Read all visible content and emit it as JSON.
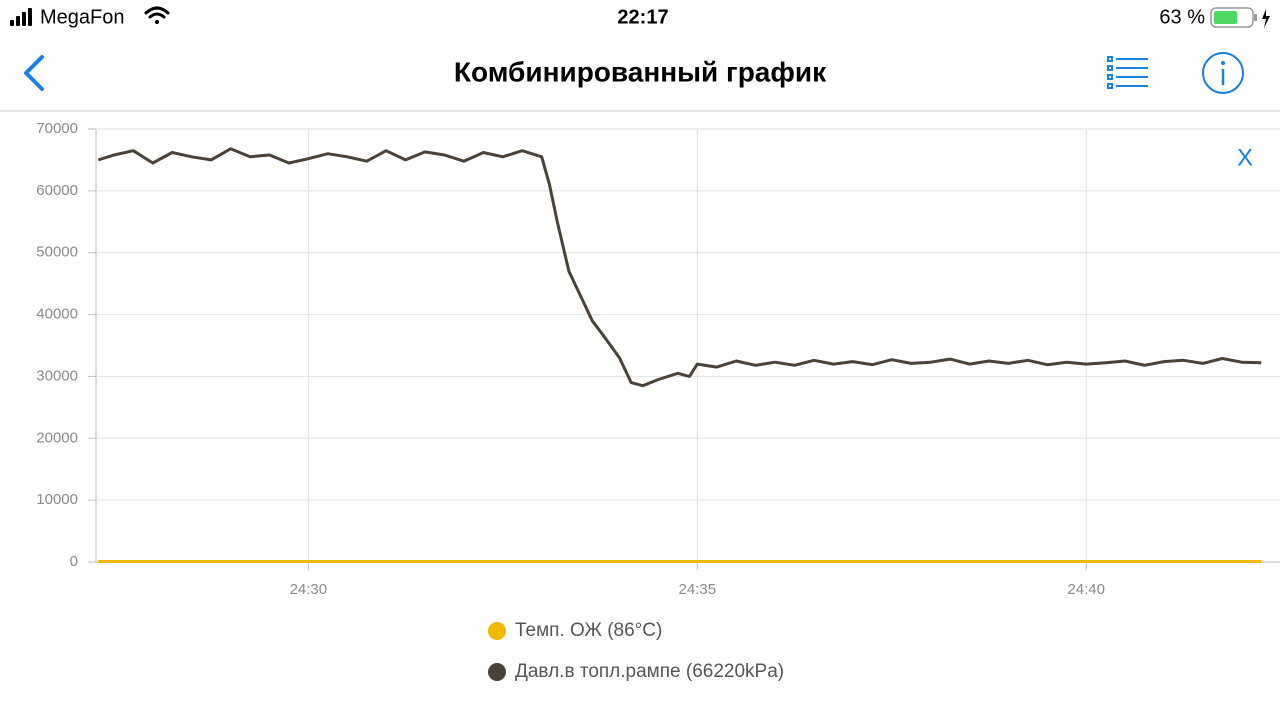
{
  "status_bar": {
    "carrier": "MegaFon",
    "time": "22:17",
    "battery": "63 %"
  },
  "nav": {
    "title": "Комбинированный график"
  },
  "close_button": "X",
  "chart_data": {
    "type": "line",
    "x": [
      27.3,
      27.5,
      27.75,
      28,
      28.25,
      28.5,
      28.75,
      29,
      29.25,
      29.5,
      29.75,
      30,
      30.25,
      30.5,
      30.75,
      31,
      31.25,
      31.5,
      31.75,
      32,
      32.25,
      32.5,
      32.75,
      33,
      33.1,
      33.2,
      33.35,
      33.5,
      33.65,
      33.8,
      34,
      34.15,
      34.3,
      34.5,
      34.75,
      34.9,
      35,
      35.25,
      35.5,
      35.75,
      36,
      36.25,
      36.5,
      36.75,
      37,
      37.25,
      37.5,
      37.75,
      38,
      38.25,
      38.5,
      38.75,
      39,
      39.25,
      39.5,
      39.75,
      40,
      40.25,
      40.5,
      40.75,
      41,
      41.25,
      41.5,
      41.75,
      42,
      42.25
    ],
    "xlim": [
      27.27,
      42.26
    ],
    "xticks": [
      {
        "value": 30,
        "label": "24:30"
      },
      {
        "value": 35,
        "label": "24:35"
      },
      {
        "value": 40,
        "label": "24:40"
      }
    ],
    "ylim": [
      0,
      70000
    ],
    "yticks": [
      0,
      10000,
      20000,
      30000,
      40000,
      50000,
      60000,
      70000
    ],
    "grid": true,
    "series": [
      {
        "name": "Темп. ОЖ (86°C)",
        "color": "#f5b800",
        "values": [
          86,
          86,
          86,
          86,
          86,
          86,
          86,
          86,
          86,
          86,
          86,
          86,
          86,
          86,
          86,
          86,
          86,
          86,
          86,
          86,
          86,
          86,
          86,
          86,
          86,
          86,
          86,
          86,
          86,
          86,
          86,
          86,
          86,
          86,
          86,
          86,
          86,
          86,
          86,
          86,
          86,
          86,
          86,
          86,
          86,
          86,
          86,
          86,
          86,
          86,
          86,
          86,
          86,
          86,
          86,
          86,
          86,
          86,
          86,
          86,
          86,
          86,
          86,
          86,
          86,
          86
        ]
      },
      {
        "name": "Давл.в топл.рампе (66220kPa)",
        "color": "#4a4237",
        "values": [
          65000,
          65800,
          66500,
          64500,
          66200,
          65500,
          65000,
          66800,
          65500,
          65800,
          64500,
          65200,
          66000,
          65500,
          64800,
          66500,
          65000,
          66300,
          65800,
          64800,
          66200,
          65500,
          66500,
          65500,
          61000,
          55000,
          47000,
          43000,
          39000,
          36500,
          33000,
          29000,
          28500,
          29500,
          30500,
          30000,
          32000,
          31500,
          32500,
          31800,
          32300,
          31800,
          32600,
          32000,
          32400,
          31900,
          32700,
          32100,
          32300,
          32800,
          32000,
          32500,
          32100,
          32600,
          31900,
          32300,
          32000,
          32200,
          32500,
          31800,
          32400,
          32600,
          32100,
          32900,
          32300,
          32200
        ]
      }
    ]
  }
}
